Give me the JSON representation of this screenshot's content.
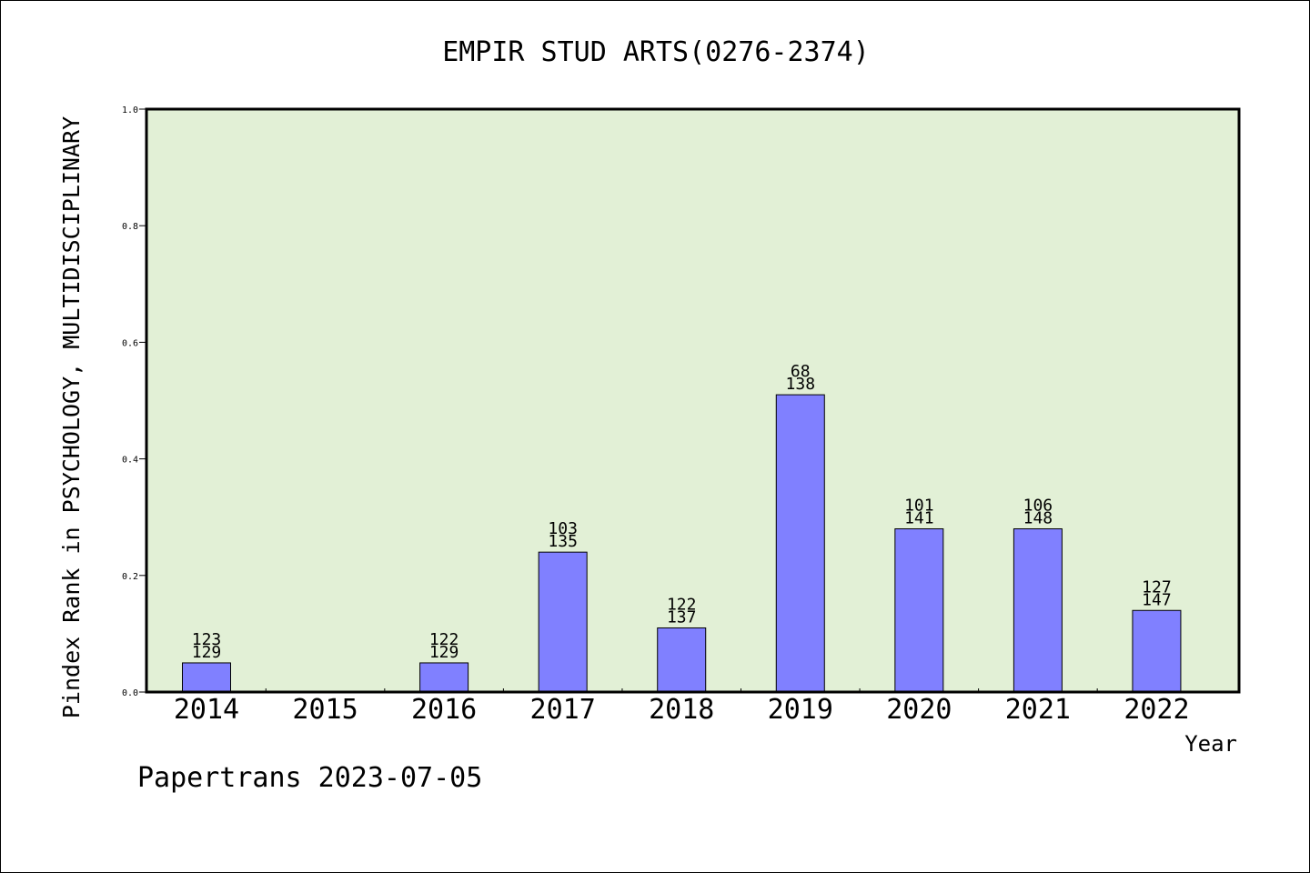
{
  "chart_data": {
    "type": "bar",
    "title": "EMPIR STUD ARTS(0276-2374)",
    "ylabel": "Pindex Rank in PSYCHOLOGY, MULTIDISCIPLINARY",
    "xlabel": "Year",
    "categories": [
      "2014",
      "2015",
      "2016",
      "2017",
      "2018",
      "2019",
      "2020",
      "2021",
      "2022"
    ],
    "values": [
      0.05,
      0,
      0.05,
      0.24,
      0.11,
      0.51,
      0.28,
      0.28,
      0.14
    ],
    "labels_top": [
      "123",
      "",
      "122",
      "103",
      "122",
      "68",
      "101",
      "106",
      "127"
    ],
    "labels_bottom": [
      "129",
      "",
      "129",
      "135",
      "137",
      "138",
      "141",
      "148",
      "147"
    ],
    "ylim": [
      0,
      1.0
    ],
    "yticks": [
      "0.0",
      "0.2",
      "0.4",
      "0.6",
      "0.8",
      "1.0"
    ],
    "grid": false,
    "colors": {
      "bar": "#8080ff",
      "plot_background": "#e2f0d6"
    }
  },
  "footer": "Papertrans 2023-07-05"
}
